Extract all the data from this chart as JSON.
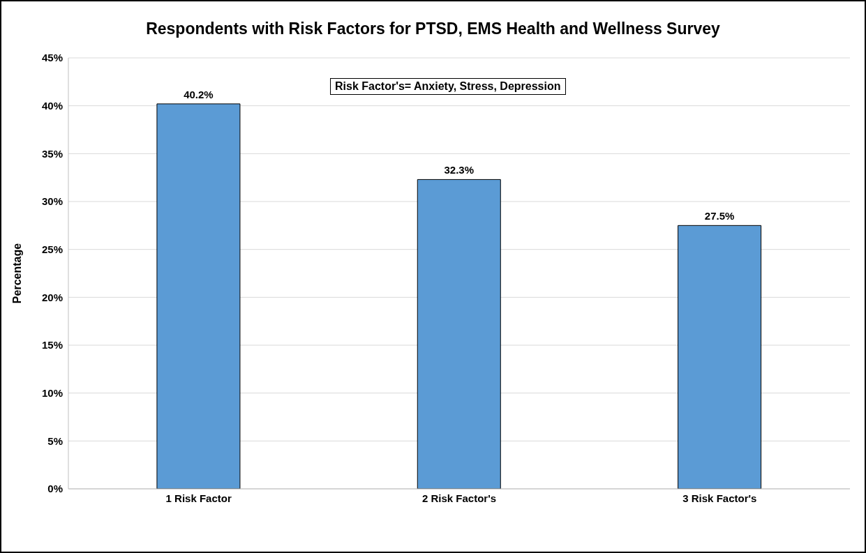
{
  "chart_data": {
    "type": "bar",
    "title": "Respondents with Risk Factors for PTSD, EMS Health and Wellness Survey",
    "ylabel": "Percentage",
    "annotations": [
      "Risk Factor's= Anxiety, Stress, Depression"
    ],
    "categories": [
      "1 Risk Factor",
      "2 Risk Factor's",
      "3 Risk Factor's"
    ],
    "values": [
      40.2,
      32.3,
      27.5
    ],
    "value_labels": [
      "40.2%",
      "32.3%",
      "27.5%"
    ],
    "color": "#5b9bd5",
    "ylim": [
      0,
      45
    ],
    "yticks": [
      {
        "value": 0,
        "label": "0%"
      },
      {
        "value": 5,
        "label": "5%"
      },
      {
        "value": 10,
        "label": "10%"
      },
      {
        "value": 15,
        "label": "15%"
      },
      {
        "value": 20,
        "label": "20%"
      },
      {
        "value": 25,
        "label": "25%"
      },
      {
        "value": 30,
        "label": "30%"
      },
      {
        "value": 35,
        "label": "35%"
      },
      {
        "value": 40,
        "label": "40%"
      },
      {
        "value": 45,
        "label": "45%"
      }
    ],
    "grid": "y",
    "legend": false
  }
}
